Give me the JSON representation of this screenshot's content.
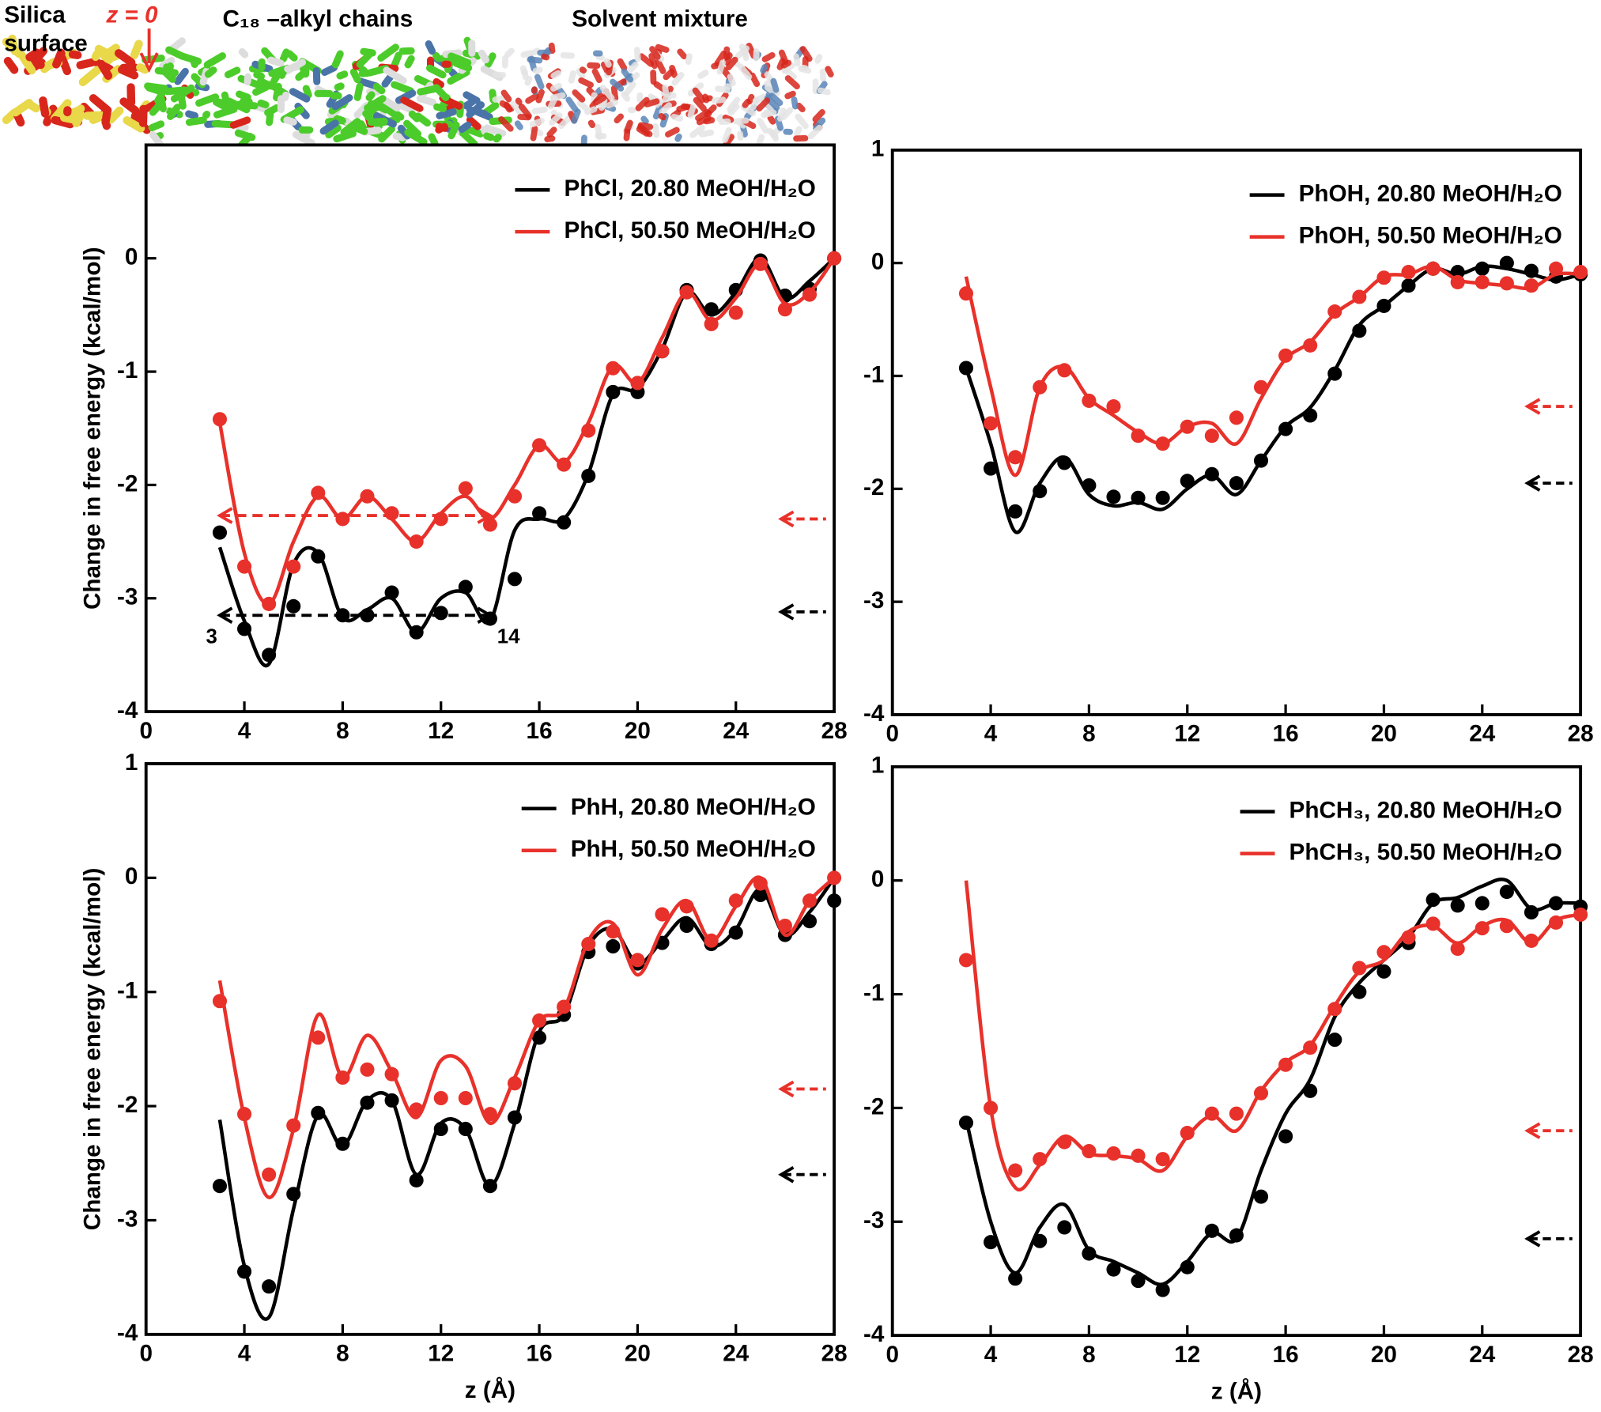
{
  "illustration": {
    "silica": [
      "Silica",
      "surface"
    ],
    "z0": "z = 0",
    "chains": "C₁₈ –alkyl chains",
    "solvent": "Solvent mixture"
  },
  "chart_data": [
    {
      "type": "line",
      "xlim": [
        0,
        28
      ],
      "xticks": [
        0,
        4,
        8,
        12,
        16,
        20,
        24,
        28
      ],
      "ylim": [
        -4,
        1
      ],
      "yticks": [
        -4,
        -3,
        -2,
        -1,
        0
      ],
      "ylabel": "Change in free energy (kcal/mol)",
      "legend": "upper right",
      "mean_range": [
        3,
        14
      ],
      "x": [
        3,
        4,
        5,
        6,
        7,
        8,
        9,
        10,
        11,
        12,
        13,
        14,
        15,
        16,
        17,
        18,
        19,
        20,
        21,
        22,
        23,
        24,
        25,
        26,
        27,
        28
      ],
      "series": [
        {
          "name": "PhCl, 20.80 MeOH/H₂O",
          "color": "#000000",
          "bulk": -3.12,
          "mean": -3.15,
          "values": [
            -2.42,
            -3.27,
            -3.5,
            -3.07,
            -2.63,
            -3.15,
            -3.15,
            -2.95,
            -3.3,
            -3.13,
            -2.9,
            -3.18,
            -2.83,
            -2.25,
            -2.33,
            -1.92,
            -1.18,
            -1.18,
            -0.82,
            -0.28,
            -0.45,
            -0.28,
            -0.02,
            -0.33,
            -0.27,
            0
          ],
          "curve": [
            -2.55,
            -3.2,
            -3.58,
            -2.7,
            -2.6,
            -3.17,
            -3.1,
            -3.0,
            -3.3,
            -3.0,
            -2.95,
            -3.2,
            -2.4,
            -2.3,
            -2.3,
            -1.9,
            -1.2,
            -1.15,
            -0.8,
            -0.3,
            -0.5,
            -0.3,
            0,
            -0.35,
            -0.2,
            0
          ]
        },
        {
          "name": "PhCl, 50.50 MeOH/H₂O",
          "color": "#e8312a",
          "bulk": -2.3,
          "mean": -2.27,
          "values": [
            -1.42,
            -2.72,
            -3.05,
            -2.72,
            -2.07,
            -2.3,
            -2.1,
            -2.25,
            -2.5,
            -2.3,
            -2.03,
            -2.35,
            -2.1,
            -1.65,
            -1.82,
            -1.52,
            -0.97,
            -1.1,
            -0.82,
            -0.3,
            -0.58,
            -0.48,
            -0.05,
            -0.45,
            -0.32,
            0
          ],
          "curve": [
            -1.45,
            -2.6,
            -3.05,
            -2.5,
            -2.1,
            -2.3,
            -2.1,
            -2.3,
            -2.5,
            -2.25,
            -2.1,
            -2.3,
            -2.0,
            -1.65,
            -1.8,
            -1.45,
            -0.95,
            -1.1,
            -0.7,
            -0.3,
            -0.55,
            -0.35,
            -0.05,
            -0.4,
            -0.3,
            0
          ]
        }
      ]
    },
    {
      "type": "line",
      "xlim": [
        0,
        28
      ],
      "xticks": [
        0,
        4,
        8,
        12,
        16,
        20,
        24,
        28
      ],
      "ylim": [
        -4,
        1
      ],
      "yticks": [
        -4,
        -3,
        -2,
        -1,
        0,
        1
      ],
      "legend": "upper right",
      "x": [
        3,
        4,
        5,
        6,
        7,
        8,
        9,
        10,
        11,
        12,
        13,
        14,
        15,
        16,
        17,
        18,
        19,
        20,
        21,
        22,
        23,
        24,
        25,
        26,
        27,
        28
      ],
      "series": [
        {
          "name": "PhOH, 20.80 MeOH/H₂O",
          "color": "#000000",
          "bulk": -1.95,
          "values": [
            -0.93,
            -1.82,
            -2.2,
            -2.02,
            -1.77,
            -1.97,
            -2.07,
            -2.08,
            -2.08,
            -1.93,
            -1.87,
            -1.95,
            -1.75,
            -1.47,
            -1.35,
            -0.98,
            -0.6,
            -0.38,
            -0.2,
            -0.05,
            -0.08,
            -0.05,
            0,
            -0.07,
            -0.12,
            -0.1
          ],
          "curve": [
            -0.93,
            -1.6,
            -2.38,
            -1.95,
            -1.72,
            -2.05,
            -2.15,
            -2.12,
            -2.18,
            -2.0,
            -1.88,
            -2.05,
            -1.75,
            -1.45,
            -1.28,
            -0.95,
            -0.55,
            -0.38,
            -0.2,
            -0.05,
            -0.1,
            -0.03,
            -0.05,
            -0.1,
            -0.15,
            -0.1
          ]
        },
        {
          "name": "PhOH, 50.50 MeOH/H₂O",
          "color": "#e8312a",
          "bulk": -1.27,
          "values": [
            -0.27,
            -1.42,
            -1.72,
            -1.1,
            -0.95,
            -1.22,
            -1.27,
            -1.53,
            -1.6,
            -1.45,
            -1.53,
            -1.37,
            -1.1,
            -0.82,
            -0.73,
            -0.43,
            -0.3,
            -0.13,
            -0.08,
            -0.05,
            -0.17,
            -0.17,
            -0.18,
            -0.2,
            -0.05,
            -0.08
          ],
          "curve": [
            -0.12,
            -1.1,
            -1.88,
            -1.1,
            -0.92,
            -1.2,
            -1.35,
            -1.5,
            -1.6,
            -1.45,
            -1.42,
            -1.6,
            -1.2,
            -0.85,
            -0.7,
            -0.45,
            -0.3,
            -0.12,
            -0.1,
            -0.03,
            -0.15,
            -0.18,
            -0.2,
            -0.22,
            -0.1,
            -0.1
          ]
        }
      ]
    },
    {
      "type": "line",
      "xlim": [
        0,
        28
      ],
      "xticks": [
        0,
        4,
        8,
        12,
        16,
        20,
        24,
        28
      ],
      "ylim": [
        -4,
        1
      ],
      "yticks": [
        -4,
        -3,
        -2,
        -1,
        0,
        1
      ],
      "ylabel": "Change in free energy (kcal/mol)",
      "xlabel": "z (Å)",
      "legend": "upper right",
      "x": [
        3,
        4,
        5,
        6,
        7,
        8,
        9,
        10,
        11,
        12,
        13,
        14,
        15,
        16,
        17,
        18,
        19,
        20,
        21,
        22,
        23,
        24,
        25,
        26,
        27,
        28
      ],
      "series": [
        {
          "name": "PhH, 20.80 MeOH/H₂O",
          "color": "#000000",
          "bulk": -2.6,
          "values": [
            -2.7,
            -3.45,
            -3.58,
            -2.77,
            -2.06,
            -2.33,
            -1.97,
            -1.95,
            -2.65,
            -2.2,
            -2.2,
            -2.7,
            -2.1,
            -1.4,
            -1.2,
            -0.65,
            -0.6,
            -0.75,
            -0.57,
            -0.42,
            -0.58,
            -0.48,
            -0.15,
            -0.5,
            -0.38,
            -0.2
          ],
          "curve": [
            -2.12,
            -3.4,
            -3.85,
            -2.9,
            -2.08,
            -2.35,
            -1.95,
            -1.95,
            -2.6,
            -2.15,
            -2.2,
            -2.7,
            -2.15,
            -1.35,
            -1.2,
            -0.6,
            -0.45,
            -0.75,
            -0.55,
            -0.35,
            -0.6,
            -0.45,
            -0.1,
            -0.5,
            -0.3,
            0
          ]
        },
        {
          "name": "PhH, 50.50 MeOH/H₂O",
          "color": "#e8312a",
          "bulk": -1.85,
          "values": [
            -1.08,
            -2.07,
            -2.6,
            -2.17,
            -1.4,
            -1.75,
            -1.68,
            -1.72,
            -2.03,
            -1.93,
            -1.93,
            -2.07,
            -1.8,
            -1.25,
            -1.13,
            -0.58,
            -0.47,
            -0.72,
            -0.32,
            -0.25,
            -0.55,
            -0.2,
            -0.05,
            -0.42,
            -0.2,
            0
          ],
          "curve": [
            -0.9,
            -2.1,
            -2.8,
            -2.2,
            -1.2,
            -1.75,
            -1.38,
            -1.7,
            -2.1,
            -1.6,
            -1.65,
            -2.15,
            -1.75,
            -1.25,
            -1.15,
            -0.55,
            -0.4,
            -0.85,
            -0.45,
            -0.2,
            -0.55,
            -0.25,
            0,
            -0.5,
            -0.2,
            0
          ]
        }
      ]
    },
    {
      "type": "line",
      "xlim": [
        0,
        28
      ],
      "xticks": [
        0,
        4,
        8,
        12,
        16,
        20,
        24,
        28
      ],
      "ylim": [
        -4,
        1
      ],
      "yticks": [
        -4,
        -3,
        -2,
        -1,
        0,
        1
      ],
      "xlabel": "z (Å)",
      "legend": "upper right",
      "x": [
        3,
        4,
        5,
        6,
        7,
        8,
        9,
        10,
        11,
        12,
        13,
        14,
        15,
        16,
        17,
        18,
        19,
        20,
        21,
        22,
        23,
        24,
        25,
        26,
        27,
        28
      ],
      "series": [
        {
          "name": "PhCH₃, 20.80 MeOH/H₂O",
          "color": "#000000",
          "bulk": -3.15,
          "values": [
            -2.13,
            -3.18,
            -3.5,
            -3.17,
            -3.05,
            -3.28,
            -3.42,
            -3.52,
            -3.6,
            -3.4,
            -3.08,
            -3.12,
            -2.78,
            -2.25,
            -1.85,
            -1.4,
            -0.98,
            -0.8,
            -0.55,
            -0.17,
            -0.22,
            -0.2,
            -0.1,
            -0.28,
            -0.2,
            -0.23
          ],
          "curve": [
            -2.1,
            -3.0,
            -3.45,
            -3.05,
            -2.85,
            -3.25,
            -3.35,
            -3.45,
            -3.55,
            -3.35,
            -3.1,
            -3.15,
            -2.55,
            -2.05,
            -1.75,
            -1.2,
            -0.9,
            -0.7,
            -0.5,
            -0.2,
            -0.15,
            -0.05,
            0,
            -0.25,
            -0.2,
            -0.2
          ]
        },
        {
          "name": "PhCH₃, 50.50 MeOH/H₂O",
          "color": "#e8312a",
          "bulk": -2.2,
          "values": [
            -0.7,
            -2.0,
            -2.55,
            -2.45,
            -2.3,
            -2.38,
            -2.4,
            -2.42,
            -2.45,
            -2.22,
            -2.05,
            -2.05,
            -1.87,
            -1.62,
            -1.47,
            -1.13,
            -0.77,
            -0.63,
            -0.5,
            -0.38,
            -0.6,
            -0.42,
            -0.4,
            -0.53,
            -0.37,
            -0.3
          ],
          "curve": [
            0,
            -2.0,
            -2.7,
            -2.5,
            -2.25,
            -2.4,
            -2.42,
            -2.45,
            -2.55,
            -2.25,
            -2.07,
            -2.2,
            -1.85,
            -1.6,
            -1.45,
            -1.1,
            -0.8,
            -0.7,
            -0.45,
            -0.4,
            -0.55,
            -0.4,
            -0.35,
            -0.55,
            -0.35,
            -0.3
          ]
        }
      ]
    }
  ]
}
